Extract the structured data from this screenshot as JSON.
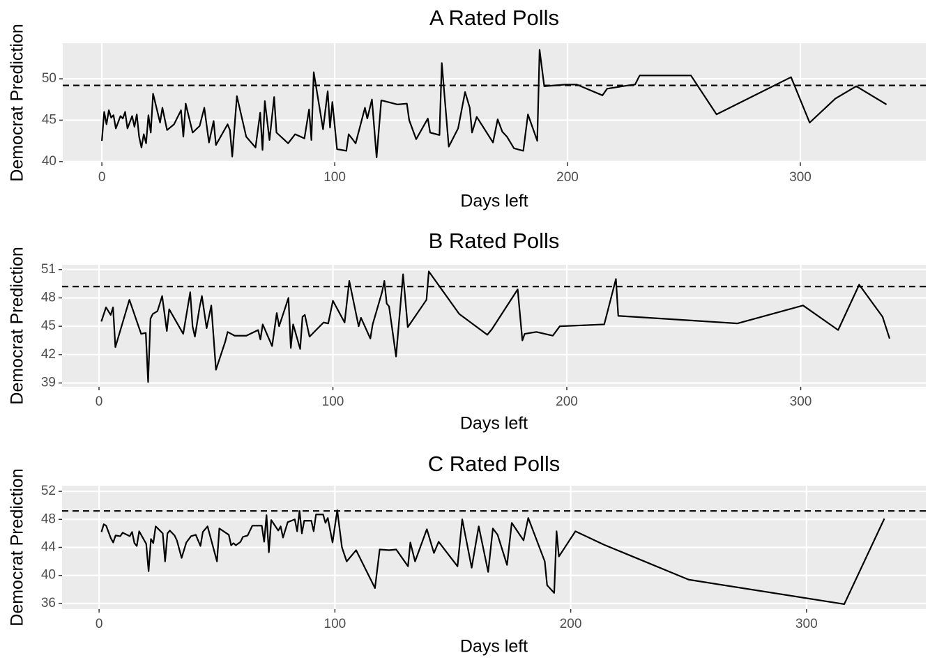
{
  "chart_data": [
    {
      "type": "line",
      "title": "A Rated Polls",
      "x_label": "Days left",
      "y_label": "Democrat Prediction",
      "color": "#000000",
      "grid": true,
      "hline": 49.2,
      "x": [
        0,
        1,
        2,
        3,
        4,
        5,
        6,
        8,
        9,
        10,
        11,
        13,
        14,
        15,
        16,
        17,
        18,
        19,
        20,
        21,
        22,
        25,
        26,
        28,
        31,
        34,
        35,
        36,
        39,
        42,
        44,
        46,
        48,
        49,
        54,
        55,
        56,
        58,
        62,
        66,
        68,
        69,
        70,
        72,
        74,
        75,
        80,
        83,
        87,
        89,
        90,
        91,
        95,
        97,
        98,
        99,
        101,
        105,
        106,
        109,
        113,
        114,
        116,
        118,
        120,
        127,
        131,
        132,
        135,
        140,
        141,
        145,
        146,
        149,
        153,
        156,
        158,
        159,
        161,
        168,
        170,
        172,
        174,
        177,
        181,
        183,
        187,
        188,
        190,
        199,
        204,
        215,
        217,
        226,
        229,
        231,
        253,
        264,
        296,
        304,
        315,
        324,
        337
      ],
      "values": [
        42.5,
        46,
        44.5,
        46.2,
        45.3,
        45.6,
        44,
        45.5,
        45.2,
        46,
        44,
        45.5,
        44.2,
        45.7,
        43,
        41.7,
        43.3,
        42.2,
        45.6,
        43.5,
        48.2,
        44.7,
        46.5,
        43.8,
        44.5,
        46.2,
        43,
        47,
        43.5,
        44.3,
        46.5,
        42.3,
        44.9,
        42,
        44.5,
        43.8,
        40.6,
        47.9,
        43,
        41.7,
        45.9,
        41.4,
        47.3,
        42.6,
        47.8,
        43.5,
        42.2,
        43.3,
        42.8,
        46.3,
        42.6,
        50.8,
        43.9,
        48.5,
        44.1,
        47.2,
        41.5,
        41.3,
        43.3,
        42.2,
        46.5,
        45.2,
        47.5,
        40.5,
        47.4,
        46.9,
        47,
        45,
        42.7,
        45.2,
        43.5,
        43.2,
        51.9,
        41.8,
        44,
        48.4,
        46.5,
        43.5,
        45.4,
        42.3,
        45.1,
        43.6,
        43,
        41.6,
        41.3,
        45.7,
        42.5,
        53.5,
        49.1,
        49.3,
        49.3,
        48,
        48.8,
        49.2,
        49.3,
        50.4,
        50.4,
        45.7,
        50.2,
        44.7,
        47.6,
        49.1,
        46.9
      ],
      "xlim": [
        -16.8,
        353.9
      ],
      "ylim": [
        39.9,
        54.3
      ],
      "xticks": [
        0,
        100,
        200,
        300
      ],
      "yticks": [
        40,
        45,
        50
      ]
    },
    {
      "type": "line",
      "title": "B Rated Polls",
      "x_label": "Days left",
      "y_label": "Democrat Prediction",
      "color": "#000000",
      "grid": true,
      "hline": 49.2,
      "x": [
        1,
        3,
        5,
        6,
        7,
        13,
        18,
        20,
        21,
        22,
        23,
        25,
        27,
        29,
        30,
        36,
        39,
        40,
        41,
        43,
        44,
        46,
        48,
        50,
        54,
        55,
        58,
        63,
        68,
        69,
        70,
        74,
        76,
        77,
        81,
        82,
        83,
        86,
        87,
        88,
        90,
        96,
        98,
        100,
        105,
        107,
        111,
        112,
        116,
        117,
        121,
        122,
        123,
        124,
        127,
        130,
        132,
        140,
        141,
        154,
        166,
        168,
        179,
        181,
        182,
        187,
        194,
        197,
        216,
        221,
        222,
        273,
        301,
        316,
        325,
        335,
        338
      ],
      "values": [
        45.5,
        47,
        46.2,
        47,
        42.8,
        47.8,
        44.2,
        44.3,
        39.1,
        45.8,
        46.3,
        46.6,
        48.2,
        44.5,
        46.8,
        44.2,
        48.6,
        45,
        43.9,
        47,
        48.2,
        44.8,
        47.2,
        40.4,
        43.4,
        44.4,
        44,
        44,
        44.6,
        43.6,
        45.2,
        42.9,
        46.4,
        45,
        48,
        42.7,
        45.2,
        42.6,
        46,
        46.2,
        43.9,
        45.4,
        45.3,
        47.7,
        45.4,
        49.8,
        45,
        45.9,
        43.7,
        45.2,
        48.6,
        49.8,
        47.4,
        47.1,
        41.8,
        50.5,
        44.9,
        47.8,
        50.8,
        46.3,
        44.1,
        44.7,
        48.9,
        43.5,
        44.2,
        44.4,
        44,
        45,
        45.2,
        50,
        46.1,
        45.3,
        47.2,
        44.6,
        49.4,
        46,
        43.7
      ],
      "xlim": [
        -15.8,
        353.5
      ],
      "ylim": [
        38.6,
        51.5
      ],
      "xticks": [
        0,
        100,
        200,
        300
      ],
      "yticks": [
        39,
        42,
        45,
        48,
        51
      ]
    },
    {
      "type": "line",
      "title": "C Rated Polls",
      "x_label": "Days left",
      "y_label": "Democrat Prediction",
      "color": "#000000",
      "grid": true,
      "hline": 49.2,
      "x": [
        1,
        2,
        3,
        5,
        6,
        7,
        9,
        10,
        13,
        14,
        15,
        16,
        17,
        20,
        21,
        22,
        23,
        24,
        27,
        28,
        29,
        30,
        32,
        33,
        35,
        37,
        39,
        41,
        43,
        44,
        46,
        50,
        51,
        55,
        56,
        57,
        58,
        60,
        61,
        63,
        65,
        69,
        70,
        71,
        72,
        73,
        76,
        77,
        78,
        80,
        83,
        84,
        85,
        86,
        87,
        90,
        91,
        92,
        95,
        96,
        97,
        99,
        101,
        103,
        105,
        109,
        117,
        119,
        123,
        126,
        131,
        132,
        134,
        139,
        142,
        144,
        152,
        154,
        158,
        161,
        165,
        167,
        169,
        173,
        175,
        180,
        182,
        189,
        190,
        193,
        194,
        195,
        202,
        214,
        250,
        316,
        333
      ],
      "values": [
        46.2,
        47.3,
        47.1,
        45.3,
        44.7,
        45.7,
        45.6,
        46.1,
        45.6,
        46.2,
        44.6,
        44.2,
        46.3,
        44.5,
        40.6,
        45.2,
        44.6,
        47,
        46,
        42,
        46,
        46.4,
        45.7,
        45,
        42.5,
        44.7,
        45.6,
        45.8,
        44.2,
        46.2,
        47,
        42,
        46.7,
        45.8,
        44.3,
        44.6,
        44.3,
        44.8,
        45.5,
        45.7,
        47.1,
        47.1,
        44.8,
        48.6,
        43.3,
        47.9,
        46.4,
        47,
        45.4,
        47.6,
        48,
        46.3,
        49.2,
        46,
        47.8,
        47.8,
        46.3,
        48.7,
        48.7,
        47.5,
        48.2,
        44.7,
        49.3,
        44,
        42,
        43.6,
        38.2,
        43.7,
        43.6,
        43.7,
        41.3,
        44.7,
        42,
        46.6,
        43.2,
        44.8,
        41.3,
        48,
        41.1,
        47,
        40.5,
        46.7,
        45.8,
        41.5,
        47.5,
        45,
        48.2,
        42,
        38.6,
        37.5,
        46.3,
        42.7,
        46.3,
        44.4,
        39.4,
        35.9,
        48.1
      ],
      "xlim": [
        -15.7,
        350.6
      ],
      "ylim": [
        35.2,
        52.8
      ],
      "xticks": [
        0,
        100,
        200,
        300
      ],
      "yticks": [
        36,
        40,
        44,
        48,
        52
      ]
    }
  ]
}
